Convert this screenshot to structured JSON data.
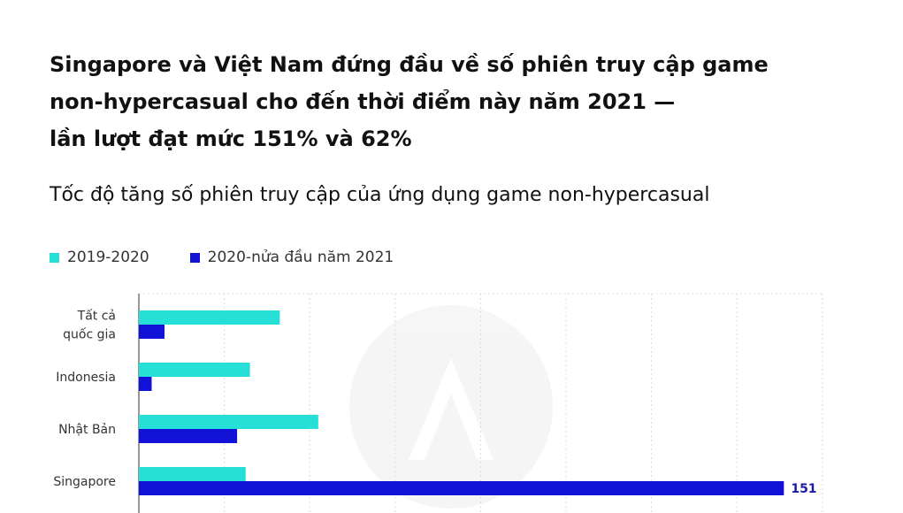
{
  "title": {
    "line1": "Singapore và Việt Nam đứng đầu về số phiên truy cập game",
    "line2": "non-hypercasual cho đến thời điểm này năm 2021 —",
    "line3": "lần lượt đạt mức 151% và 62%"
  },
  "subtitle": "Tốc độ tăng số phiên truy cập của ứng dụng game non-hypercasual",
  "colors": {
    "series1": "#26e0d8",
    "series2": "#1212d6",
    "grid": "#dcdcdc",
    "axis": "#777777"
  },
  "chart_data": {
    "type": "bar",
    "orientation": "horizontal",
    "categories": [
      {
        "lines": [
          "Tất cả",
          "quốc gia"
        ]
      },
      {
        "lines": [
          "Indonesia"
        ]
      },
      {
        "lines": [
          "Nhật Bản"
        ]
      },
      {
        "lines": [
          "Singapore"
        ]
      }
    ],
    "series": [
      {
        "name": "2019-2020",
        "color": "#26e0d8",
        "values": [
          33,
          26,
          42,
          25
        ]
      },
      {
        "name": "2020-nửa đầu năm 2021",
        "color": "#1212d6",
        "values": [
          6,
          3,
          23,
          151
        ]
      }
    ],
    "data_labels": {
      "3": {
        "series": 1,
        "text": "151"
      }
    },
    "xlim": [
      0,
      160
    ],
    "grid": true,
    "legend_position": "top-left"
  }
}
